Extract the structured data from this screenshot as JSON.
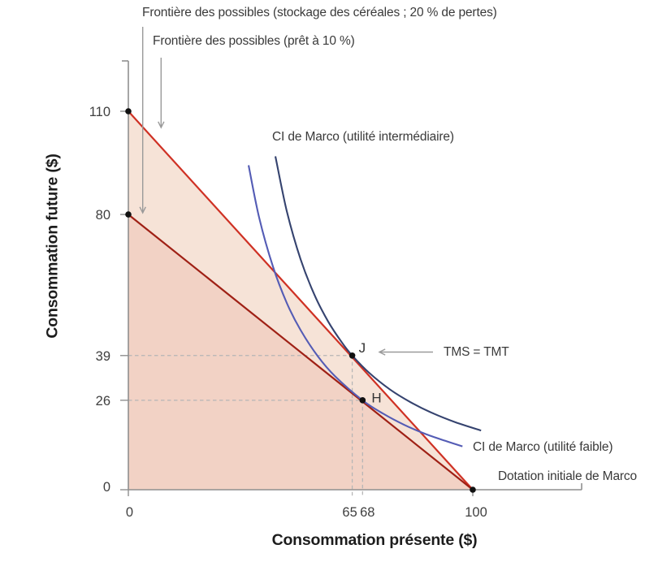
{
  "chart_data": {
    "type": "line",
    "title": "",
    "xlabel": "Consommation présente ($)",
    "ylabel": "Consommation future ($)",
    "xlim": [
      0,
      131
    ],
    "ylim": [
      0,
      124
    ],
    "x_ticks": [
      0,
      65,
      68,
      100
    ],
    "y_ticks": [
      0,
      26,
      39,
      80,
      110
    ],
    "grid": false,
    "frontiers": [
      {
        "key": "loan",
        "color": "#cf3124",
        "fill": "#f6e3d7",
        "points": [
          [
            0,
            110
          ],
          [
            100,
            0
          ]
        ]
      },
      {
        "key": "storage",
        "color": "#9f2015",
        "fill": "#f2d2c5",
        "points": [
          [
            0,
            80
          ],
          [
            100,
            0
          ]
        ]
      }
    ],
    "indifference_curves": [
      {
        "key": "intermediate",
        "color": "#35436f",
        "points": [
          [
            42.7,
            96.9
          ],
          [
            46,
            81.0
          ],
          [
            50,
            67.0
          ],
          [
            54,
            56.7
          ],
          [
            58,
            48.9
          ],
          [
            62,
            42.8
          ],
          [
            65,
            39
          ],
          [
            70,
            33.9
          ],
          [
            76,
            29.1
          ],
          [
            82,
            25.4
          ],
          [
            88,
            22.4
          ],
          [
            95,
            19.6
          ],
          [
            102.4,
            17.2
          ]
        ]
      },
      {
        "key": "low",
        "color": "#545cb5",
        "points": [
          [
            34.9,
            94.3
          ],
          [
            38,
            79.0
          ],
          [
            42,
            64.8
          ],
          [
            46,
            54.3
          ],
          [
            50,
            46.4
          ],
          [
            55,
            38.8
          ],
          [
            60,
            33.0
          ],
          [
            68,
            26
          ],
          [
            74,
            22.1
          ],
          [
            80,
            18.9
          ],
          [
            86,
            16.3
          ],
          [
            92,
            14.2
          ],
          [
            97,
            12.6
          ]
        ]
      }
    ],
    "points": [
      {
        "x": 0,
        "y": 110,
        "label": ""
      },
      {
        "x": 0,
        "y": 80,
        "label": ""
      },
      {
        "x": 65,
        "y": 39,
        "label": "J",
        "guides": true
      },
      {
        "x": 68,
        "y": 26,
        "label": "H",
        "guides": true
      },
      {
        "x": 100,
        "y": 0,
        "label": ""
      }
    ],
    "annotations": {
      "frontier_storage": "Frontière des possibles (stockage des céréales ; 20 % de pertes)",
      "frontier_loan": "Frontière des possibles (prêt à 10 %)",
      "ci_intermediate": "CI de Marco (utilité intermédiaire)",
      "tms_tmt": "TMS = TMT",
      "ci_low": "CI de Marco (utilité faible)",
      "endowment": "Dotation initiale de Marco"
    }
  }
}
